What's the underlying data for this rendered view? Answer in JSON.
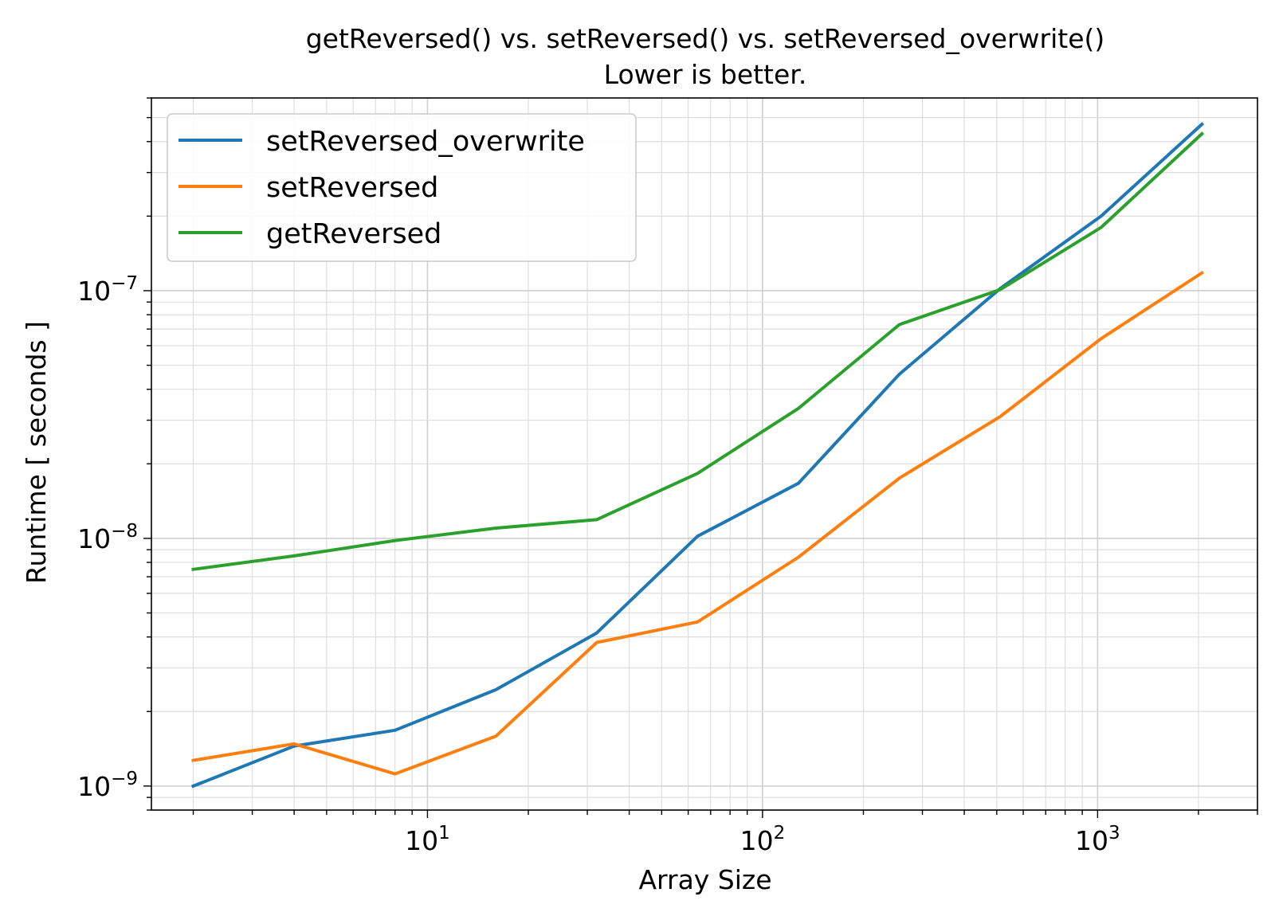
{
  "chart_data": {
    "type": "line",
    "title": "getReversed() vs. setReversed() vs. setReversed_overwrite()",
    "subtitle": "Lower is better.",
    "xlabel": "Array Size",
    "ylabel": "Runtime [ seconds ]",
    "xscale": "log",
    "yscale": "log",
    "xlim": [
      1.5,
      3000
    ],
    "ylim": [
      8e-10,
      6e-07
    ],
    "grid": "major-and-minor",
    "legend_position": "top-left",
    "x": [
      2,
      4,
      8,
      16,
      32,
      64,
      128,
      256,
      512,
      1024,
      2048
    ],
    "x_ticks": [
      {
        "value": 10,
        "base": "10",
        "exp": "1"
      },
      {
        "value": 100,
        "base": "10",
        "exp": "2"
      },
      {
        "value": 1000,
        "base": "10",
        "exp": "3"
      }
    ],
    "y_ticks": [
      {
        "value": 1e-09,
        "base": "10",
        "exp": "−9"
      },
      {
        "value": 1e-08,
        "base": "10",
        "exp": "−8"
      },
      {
        "value": 1e-07,
        "base": "10",
        "exp": "−7"
      }
    ],
    "series": [
      {
        "name": "setReversed_overwrite",
        "color": "#1f77b4",
        "values": [
          1e-09,
          1.45e-09,
          1.68e-09,
          2.45e-09,
          4.15e-09,
          1.02e-08,
          1.67e-08,
          4.6e-08,
          1.02e-07,
          2e-07,
          4.7e-07
        ]
      },
      {
        "name": "setReversed",
        "color": "#ff7f0e",
        "values": [
          1.27e-09,
          1.48e-09,
          1.12e-09,
          1.59e-09,
          3.8e-09,
          4.6e-09,
          8.4e-09,
          1.75e-08,
          3.1e-08,
          6.4e-08,
          1.18e-07
        ]
      },
      {
        "name": "getReversed",
        "color": "#2ca02c",
        "values": [
          7.5e-09,
          8.5e-09,
          9.8e-09,
          1.1e-08,
          1.19e-08,
          1.83e-08,
          3.35e-08,
          7.3e-08,
          1.01e-07,
          1.8e-07,
          4.3e-07
        ]
      }
    ]
  }
}
